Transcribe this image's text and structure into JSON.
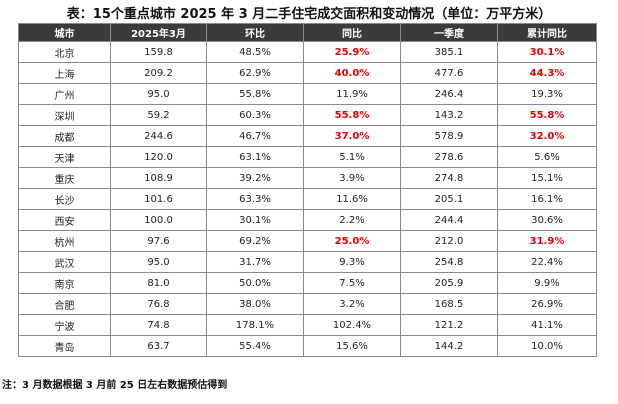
{
  "title": "表：15个重点城市 2025 年 3 月二手住宅成交面积和变动情况（单位：万平方米）",
  "headers": [
    "城市",
    "2025年3月",
    "环比",
    "同比",
    "一季度",
    "累计同比"
  ],
  "highlight_color": "#e60000",
  "rows": [
    {
      "city": "北京",
      "mar2025": "159.8",
      "mom": "48.5%",
      "yoy": "25.9%",
      "q1": "385.1",
      "cum_yoy": "30.1%",
      "yoy_red": true,
      "cum_red": true
    },
    {
      "city": "上海",
      "mar2025": "209.2",
      "mom": "62.9%",
      "yoy": "40.0%",
      "q1": "477.6",
      "cum_yoy": "44.3%",
      "yoy_red": true,
      "cum_red": true
    },
    {
      "city": "广州",
      "mar2025": "95.0",
      "mom": "55.8%",
      "yoy": "11.9%",
      "q1": "246.4",
      "cum_yoy": "19.3%",
      "yoy_red": false,
      "cum_red": false
    },
    {
      "city": "深圳",
      "mar2025": "59.2",
      "mom": "60.3%",
      "yoy": "55.8%",
      "q1": "143.2",
      "cum_yoy": "55.8%",
      "yoy_red": true,
      "cum_red": true
    },
    {
      "city": "成都",
      "mar2025": "244.6",
      "mom": "46.7%",
      "yoy": "37.0%",
      "q1": "578.9",
      "cum_yoy": "32.0%",
      "yoy_red": true,
      "cum_red": true
    },
    {
      "city": "天津",
      "mar2025": "120.0",
      "mom": "63.1%",
      "yoy": "5.1%",
      "q1": "278.6",
      "cum_yoy": "5.6%",
      "yoy_red": false,
      "cum_red": false
    },
    {
      "city": "重庆",
      "mar2025": "108.9",
      "mom": "39.2%",
      "yoy": "3.9%",
      "q1": "274.8",
      "cum_yoy": "15.1%",
      "yoy_red": false,
      "cum_red": false
    },
    {
      "city": "长沙",
      "mar2025": "101.6",
      "mom": "63.3%",
      "yoy": "11.6%",
      "q1": "205.1",
      "cum_yoy": "16.1%",
      "yoy_red": false,
      "cum_red": false
    },
    {
      "city": "西安",
      "mar2025": "100.0",
      "mom": "30.1%",
      "yoy": "2.2%",
      "q1": "244.4",
      "cum_yoy": "30.6%",
      "yoy_red": false,
      "cum_red": false
    },
    {
      "city": "杭州",
      "mar2025": "97.6",
      "mom": "69.2%",
      "yoy": "25.0%",
      "q1": "212.0",
      "cum_yoy": "31.9%",
      "yoy_red": true,
      "cum_red": true
    },
    {
      "city": "武汉",
      "mar2025": "95.0",
      "mom": "31.7%",
      "yoy": "9.3%",
      "q1": "254.8",
      "cum_yoy": "22.4%",
      "yoy_red": false,
      "cum_red": false
    },
    {
      "city": "南京",
      "mar2025": "81.0",
      "mom": "50.0%",
      "yoy": "7.5%",
      "q1": "205.9",
      "cum_yoy": "9.9%",
      "yoy_red": false,
      "cum_red": false
    },
    {
      "city": "合肥",
      "mar2025": "76.8",
      "mom": "38.0%",
      "yoy": "3.2%",
      "q1": "168.5",
      "cum_yoy": "26.9%",
      "yoy_red": false,
      "cum_red": false
    },
    {
      "city": "宁波",
      "mar2025": "74.8",
      "mom": "178.1%",
      "yoy": "102.4%",
      "q1": "121.2",
      "cum_yoy": "41.1%",
      "yoy_red": false,
      "cum_red": false
    },
    {
      "city": "青岛",
      "mar2025": "63.7",
      "mom": "55.4%",
      "yoy": "15.6%",
      "q1": "144.2",
      "cum_yoy": "10.0%",
      "yoy_red": false,
      "cum_red": false
    }
  ],
  "note": "注：3 月数据根据 3 月前 25 日左右数据预估得到"
}
